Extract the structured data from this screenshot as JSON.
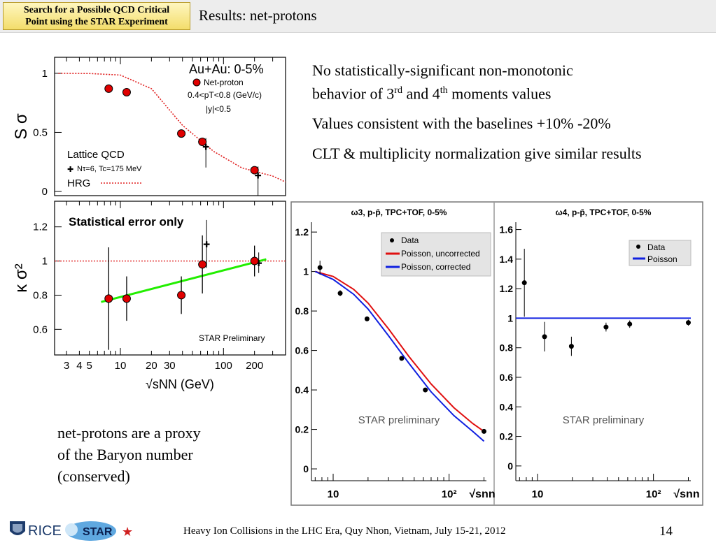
{
  "header": {
    "badge_line1": "Search for a Possible QCD Critical",
    "badge_line2": "Point using the STAR Experiment",
    "title": "Results: net-protons"
  },
  "bullets": {
    "b1_part1": "No statistically-significant non-monotonic",
    "b1_part2": "behavior of 3",
    "b1_sup1": "rd",
    "b1_part3": " and 4",
    "b1_sup2": "th",
    "b1_part4": " moments values",
    "b2": "Values consistent with the baselines +10% -20%",
    "b3": "CLT & multiplicity normalization give similar results"
  },
  "proxy_text": {
    "line1": "net-protons are a proxy",
    "line2": "of the Baryon number",
    "line3": "(conserved)"
  },
  "footer": {
    "conference": "Heavy Ion Collisions in the LHC Era, Quy Nhon, Vietnam, July 15-21, 2012",
    "page": "14",
    "logo_rice": "RICE",
    "logo_star": "STAR"
  },
  "colors": {
    "data_marker": "#e00000",
    "hrg_line": "#e02020",
    "fit_line": "#22ee00",
    "poisson_uncorrected": "#e01010",
    "poisson_corrected": "#1020e0",
    "poisson": "#1020e0",
    "star_badge": "#f3dd6b"
  },
  "chart_data": [
    {
      "type": "scatter",
      "panel": "top-left",
      "ylabel": "S σ",
      "ylim": [
        0,
        1.1
      ],
      "xscale": "log",
      "xlim": [
        2.3,
        400
      ],
      "yticks": [
        "1",
        "0.5",
        "0"
      ],
      "annotations": [
        "Au+Au: 0-5%",
        "Net-proton",
        "0.4<pT<0.8 (GeV/c)",
        "|y|<0.5",
        "Lattice QCD",
        "Nτ=6, Tc=175 MeV",
        "HRG"
      ],
      "series": [
        {
          "name": "Net-proton",
          "x": [
            7.7,
            11.5,
            39,
            62.4,
            200
          ],
          "y": [
            0.87,
            0.84,
            0.49,
            0.42,
            0.18
          ]
        },
        {
          "name": "Lattice QCD",
          "x": [
            62.4,
            200
          ],
          "y": [
            0.38,
            0.14
          ]
        },
        {
          "name": "HRG",
          "x": [
            2.5,
            5,
            10,
            20,
            40,
            80,
            150,
            300,
            400
          ],
          "y": [
            1.0,
            0.998,
            0.985,
            0.87,
            0.56,
            0.34,
            0.2,
            0.13,
            0.08
          ]
        }
      ]
    },
    {
      "type": "scatter",
      "panel": "bottom-left",
      "ylabel": "κ σ²",
      "xlabel": "√sNN (GeV)",
      "xscale": "log",
      "xlim": [
        2.3,
        400
      ],
      "ylim": [
        0.45,
        1.35
      ],
      "xticks": [
        "3",
        "4",
        "5",
        "10",
        "20",
        "30",
        "100",
        "200"
      ],
      "yticks": [
        "1.2",
        "1",
        "0.8",
        "0.6"
      ],
      "annotations": [
        "Statistical error only",
        "STAR Preliminary"
      ],
      "series": [
        {
          "name": "Net-proton",
          "x": [
            7.7,
            11.5,
            39,
            62.4,
            200
          ],
          "y": [
            0.78,
            0.78,
            0.8,
            0.98,
            1.0
          ],
          "err": [
            0.3,
            0.13,
            0.11,
            0.17,
            0.09
          ]
        },
        {
          "name": "Lattice QCD",
          "x": [
            62.4,
            200
          ],
          "y": [
            1.1,
            0.99
          ],
          "err": [
            0.14,
            0.06
          ]
        },
        {
          "name": "Linear fit",
          "x": [
            6.5,
            260
          ],
          "y": [
            0.76,
            1.01
          ]
        }
      ]
    },
    {
      "type": "line",
      "panel": "bottom-right-1",
      "title": "ω3, p-p̄, TPC+TOF, 0-5%",
      "xlabel": "√snn",
      "xscale": "log",
      "xlim": [
        6.5,
        210
      ],
      "ylim": [
        -0.06,
        1.25
      ],
      "xticks": [
        "10",
        "10²"
      ],
      "yticks": [
        "1.2",
        "1",
        "0.8",
        "0.6",
        "0.4",
        "0.2",
        "0"
      ],
      "annotations": [
        "STAR preliminary"
      ],
      "legend_position": "top-right",
      "series": [
        {
          "name": "Data",
          "x": [
            7.7,
            11.5,
            19.6,
            39,
            62.4,
            200
          ],
          "y": [
            1.02,
            0.89,
            0.76,
            0.56,
            0.4,
            0.19
          ],
          "err": [
            0.035,
            0.015,
            0.01,
            0.01,
            0.01,
            0.01
          ]
        },
        {
          "name": "Poisson, uncorrected",
          "x": [
            7,
            10,
            15,
            20,
            30,
            45,
            70,
            110,
            160,
            200
          ],
          "y": [
            1.0,
            0.975,
            0.91,
            0.84,
            0.71,
            0.57,
            0.43,
            0.31,
            0.23,
            0.19
          ]
        },
        {
          "name": "Poisson, corrected",
          "x": [
            7,
            10,
            15,
            20,
            30,
            45,
            70,
            110,
            160,
            200
          ],
          "y": [
            1.0,
            0.96,
            0.885,
            0.81,
            0.675,
            0.535,
            0.39,
            0.27,
            0.19,
            0.14
          ]
        }
      ]
    },
    {
      "type": "scatter",
      "panel": "bottom-right-2",
      "title": "ω4, p-p̄, TPC+TOF, 0-5%",
      "xlabel": "√snn",
      "xscale": "log",
      "xlim": [
        6.5,
        210
      ],
      "ylim": [
        -0.1,
        1.65
      ],
      "xticks": [
        "10",
        "10²"
      ],
      "yticks": [
        "1.6",
        "1.4",
        "1.2",
        "1",
        "0.8",
        "0.6",
        "0.4",
        "0.2",
        "0"
      ],
      "annotations": [
        "STAR preliminary"
      ],
      "legend_position": "top-right",
      "series": [
        {
          "name": "Data",
          "x": [
            7.7,
            11.5,
            19.6,
            39,
            62.4,
            200
          ],
          "y": [
            1.24,
            0.875,
            0.81,
            0.94,
            0.96,
            0.97
          ],
          "err": [
            0.23,
            0.1,
            0.065,
            0.03,
            0.025,
            0.02
          ]
        },
        {
          "name": "Poisson",
          "x": [
            6.5,
            210
          ],
          "y": [
            1.0,
            1.0
          ]
        }
      ]
    }
  ]
}
